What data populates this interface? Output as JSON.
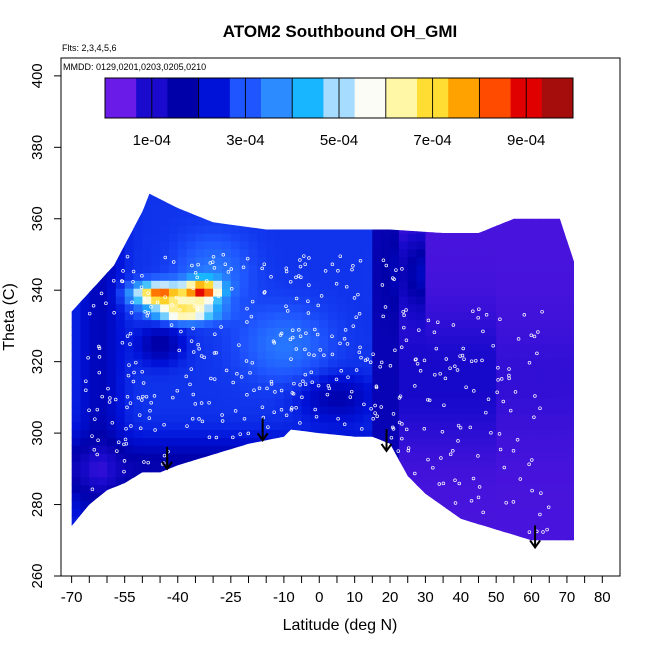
{
  "chart_data": {
    "type": "heatmap",
    "title": "ATOM2 Southbound OH_GMI",
    "note_flights": "Flts: 2,3,4,5,6",
    "note_dates": "MMDD: 0129,0201,0203,0205,0210",
    "xlabel": "Latitude (deg N)",
    "ylabel": "Theta (C)",
    "xlim": [
      -73,
      85
    ],
    "ylim": [
      260,
      405
    ],
    "x_ticks": [
      "-70",
      "-55",
      "-40",
      "-25",
      "-10",
      "0",
      "10",
      "20",
      "30",
      "40",
      "50",
      "60",
      "70",
      "80"
    ],
    "x_tick_values": [
      -70,
      -55,
      -40,
      -25,
      -10,
      0,
      10,
      20,
      30,
      40,
      50,
      60,
      70,
      80
    ],
    "x_minor_ticks": [
      -65,
      -60,
      -50,
      -45,
      -35,
      -30,
      -20,
      -15,
      -5,
      5,
      15,
      25,
      35,
      45,
      55,
      65,
      75
    ],
    "y_ticks": [
      "260",
      "280",
      "300",
      "320",
      "340",
      "360",
      "380",
      "400"
    ],
    "y_tick_values": [
      260,
      280,
      300,
      320,
      340,
      360,
      380,
      400
    ],
    "colorbar": {
      "range": [
        0,
        0.001
      ],
      "tick_labels": [
        "1e-04",
        "3e-04",
        "5e-04",
        "7e-04",
        "9e-04"
      ],
      "tick_values": [
        0.0001,
        0.0003,
        0.0005,
        0.0007,
        0.0009
      ],
      "colors": [
        "#6a1be8",
        "#1a0acd",
        "#0000a8",
        "#0011d8",
        "#1f55ff",
        "#2c8cff",
        "#17b6ff",
        "#a6dcff",
        "#fafcf5",
        "#fff6a6",
        "#ffdd33",
        "#ffa200",
        "#ff4b00",
        "#e00000",
        "#a50d0d"
      ]
    },
    "arrows": [
      {
        "lat": -43,
        "theta": 290
      },
      {
        "lat": -16,
        "theta": 298
      },
      {
        "lat": 19,
        "theta": 295
      },
      {
        "lat": 61,
        "theta": 268
      }
    ],
    "field_bounds": {
      "lat": [
        -70,
        72
      ],
      "top_theta": {
        "lat": [
          -70,
          -58,
          -50,
          -48,
          -40,
          -30,
          -15,
          0,
          20,
          35,
          45,
          55,
          60,
          68,
          72
        ],
        "theta": [
          334,
          347,
          362,
          367,
          363,
          359,
          357,
          357,
          357,
          356,
          356,
          360,
          360,
          360,
          348
        ]
      },
      "bottom_theta": {
        "lat": [
          -70,
          -65,
          -60,
          -55,
          -50,
          -45,
          -40,
          -30,
          -20,
          -10,
          -8,
          0,
          10,
          15,
          20,
          25,
          30,
          40,
          50,
          60,
          65,
          72
        ],
        "theta": [
          274,
          280,
          284,
          286,
          289,
          289,
          291,
          294,
          297,
          299,
          301,
          300,
          299,
          299,
          297,
          288,
          283,
          276,
          273,
          270,
          270,
          270
        ]
      }
    }
  }
}
